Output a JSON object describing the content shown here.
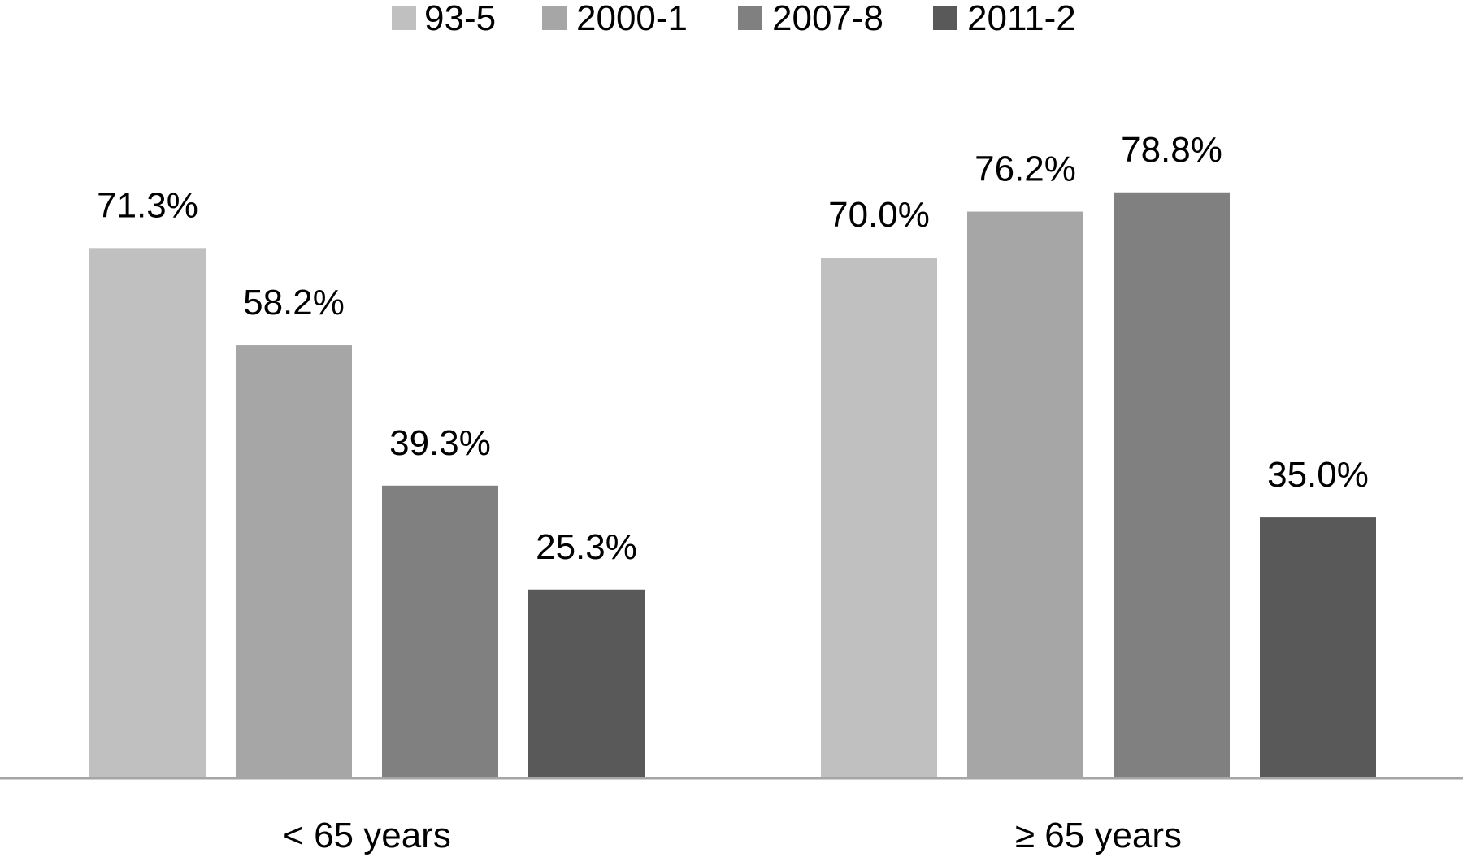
{
  "chart_data": {
    "type": "bar",
    "title": "",
    "xlabel": "",
    "ylabel": "",
    "categories": [
      "< 65 years",
      "≥ 65 years"
    ],
    "series": [
      {
        "name": "93-5",
        "values": [
          71.3,
          70.0
        ],
        "labels": [
          "71.3%",
          "70.0%"
        ],
        "color": "#c0c0c0"
      },
      {
        "name": "2000-1",
        "values": [
          58.2,
          76.2
        ],
        "labels": [
          "58.2%",
          "76.2%"
        ],
        "color": "#a6a6a6"
      },
      {
        "name": "2007-8",
        "values": [
          39.3,
          78.8
        ],
        "labels": [
          "39.3%",
          "78.8%"
        ],
        "color": "#808080"
      },
      {
        "name": "2011-2",
        "values": [
          25.3,
          35.0
        ],
        "labels": [
          "25.3%",
          "35.0%"
        ],
        "color": "#595959"
      }
    ],
    "ylim": [
      0,
      100
    ],
    "grid": false,
    "legend_position": "top",
    "axis_color": "#a6a6a6"
  }
}
